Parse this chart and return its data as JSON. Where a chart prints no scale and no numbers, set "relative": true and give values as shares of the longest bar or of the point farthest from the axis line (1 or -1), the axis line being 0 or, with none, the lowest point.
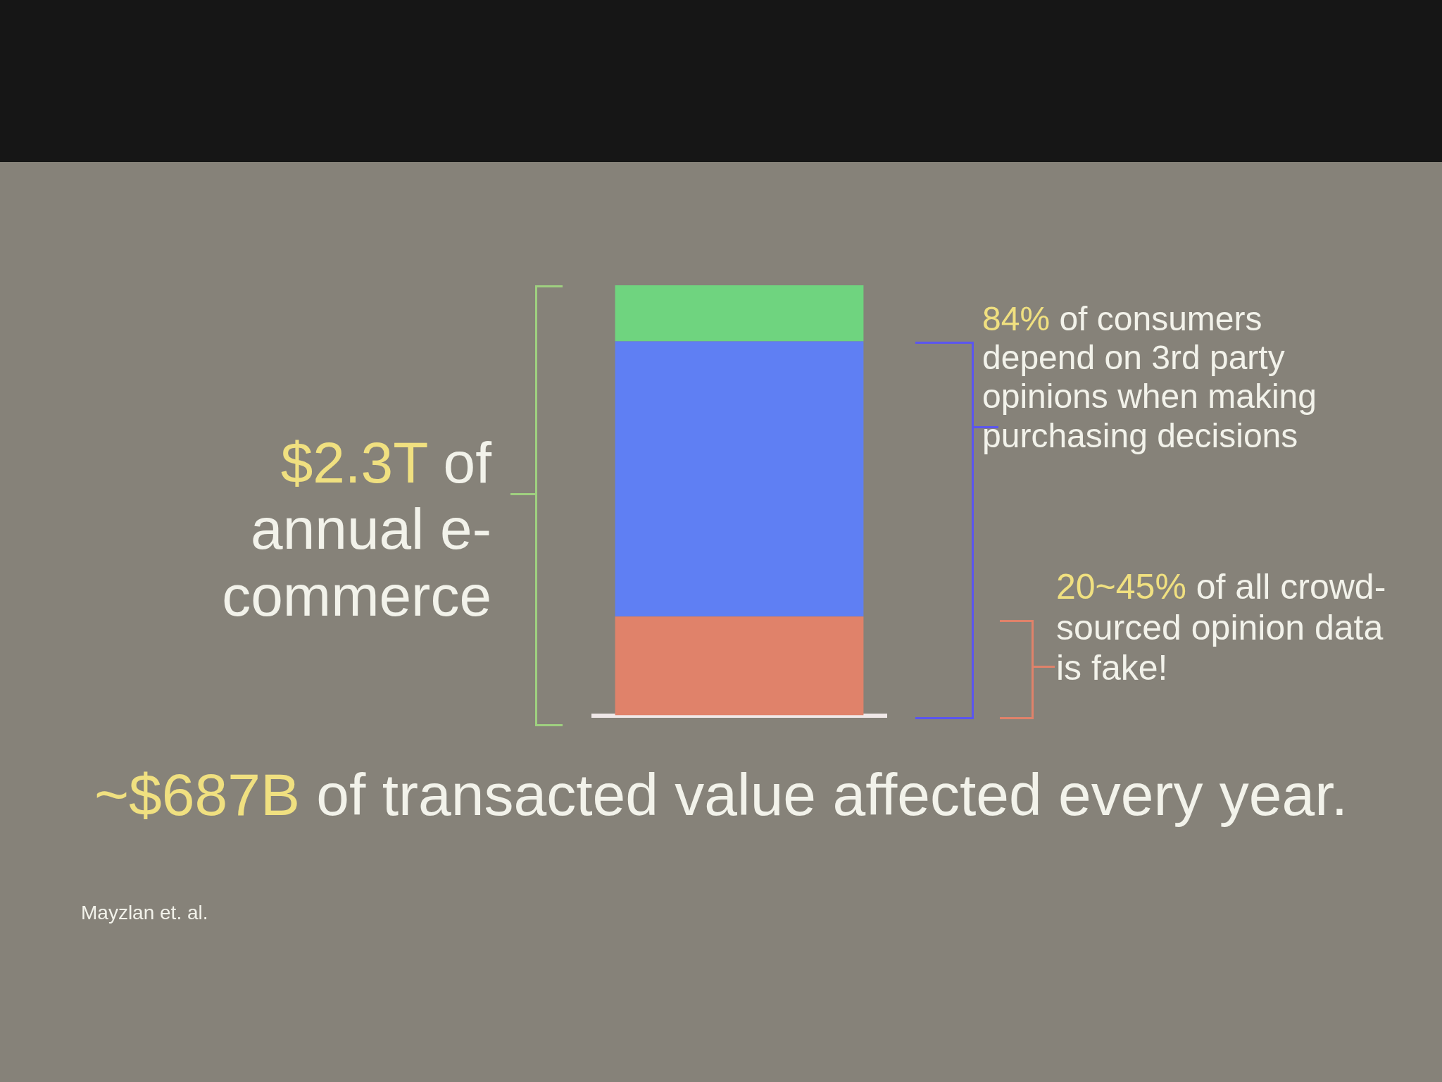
{
  "chart_data": {
    "type": "bar",
    "categories": [
      null
    ],
    "stacked": true,
    "relative": true,
    "series": [
      {
        "color": "#e0826a",
        "values": [
          0.23
        ]
      },
      {
        "color": "#5f7ff3",
        "values": [
          0.64
        ]
      },
      {
        "color": "#6fd47f",
        "values": [
          0.13
        ]
      }
    ],
    "annotations": [
      "$2.3T of annual e-commerce",
      "84% of consumers depend on 3rd party opinions when making purchasing decisions",
      "20~45% of all crowd-sourced opinion data is fake!",
      "~$687B of transacted value affected every year.",
      "Mayzlan et. al."
    ]
  }
}
